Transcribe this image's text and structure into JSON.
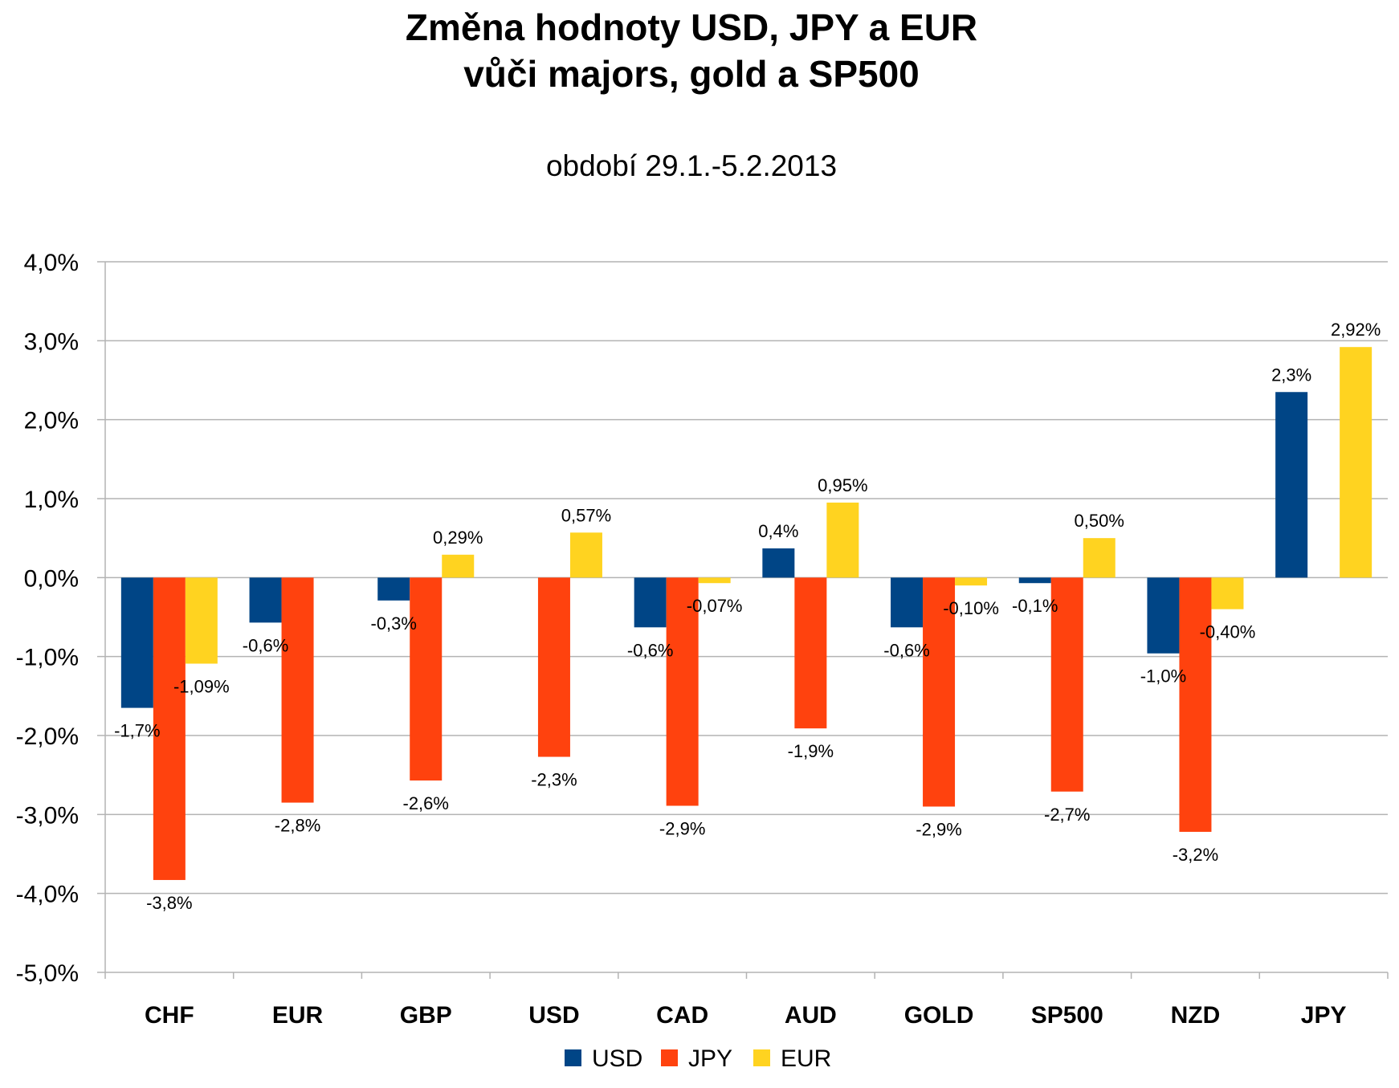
{
  "chart_data": {
    "type": "bar",
    "title_lines": [
      "Změna hodnoty USD, JPY a EUR",
      "vůči majors, gold a SP500"
    ],
    "subtitle": "období 29.1.-5.2.2013",
    "categories": [
      "CHF",
      "EUR",
      "GBP",
      "USD",
      "CAD",
      "AUD",
      "GOLD",
      "SP500",
      "NZD",
      "JPY"
    ],
    "series": [
      {
        "name": "USD",
        "color": "#004586",
        "values": [
          -1.65,
          -0.57,
          -0.29,
          null,
          -0.63,
          0.37,
          -0.63,
          -0.07,
          -0.96,
          2.35
        ],
        "labels": [
          "-1,7%",
          "-0,6%",
          "-0,3%",
          null,
          "-0,6%",
          "0,4%",
          "-0,6%",
          "-0,1%",
          "-1,0%",
          "2,3%"
        ]
      },
      {
        "name": "JPY",
        "color": "#ff420e",
        "values": [
          -3.83,
          -2.85,
          -2.57,
          -2.27,
          -2.89,
          -1.91,
          -2.9,
          -2.71,
          -3.22,
          null
        ],
        "labels": [
          "-3,8%",
          "-2,8%",
          "-2,6%",
          "-2,3%",
          "-2,9%",
          "-1,9%",
          "-2,9%",
          "-2,7%",
          "-3,2%",
          null
        ]
      },
      {
        "name": "EUR",
        "color": "#ffd320",
        "values": [
          -1.09,
          null,
          0.29,
          0.57,
          -0.07,
          0.95,
          -0.1,
          0.5,
          -0.4,
          2.92
        ],
        "labels": [
          "-1,09%",
          null,
          "0,29%",
          "0,57%",
          "-0,07%",
          "0,95%",
          "-0,10%",
          "0,50%",
          "-0,40%",
          "2,92%"
        ]
      }
    ],
    "ylim": [
      -5,
      4
    ],
    "yticks": [
      4,
      3,
      2,
      1,
      0,
      -1,
      -2,
      -3,
      -4,
      -5
    ],
    "ytick_labels": [
      "4,0%",
      "3,0%",
      "2,0%",
      "1,0%",
      "0,0%",
      "-1,0%",
      "-2,0%",
      "-3,0%",
      "-4,0%",
      "-5,0%"
    ],
    "xlabel": "",
    "ylabel": "",
    "grid": true,
    "legend_position": "bottom",
    "grid_color": "#b3b3b3"
  }
}
